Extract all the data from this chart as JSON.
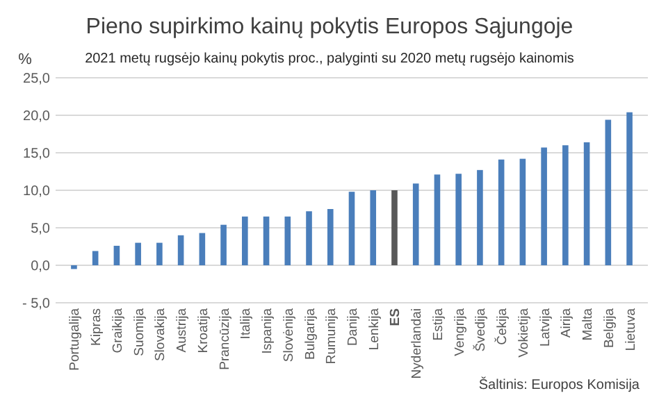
{
  "chart_data": {
    "type": "bar",
    "title": "Pieno supirkimo kainų pokytis Europos Sąjungoje",
    "subtitle": "2021 metų rugsėjo kainų pokytis proc., palyginti su 2020 metų rugsėjo kainomis",
    "ylabel": "%",
    "categories": [
      "Portugalija",
      "Kipras",
      "Graikija",
      "Suomija",
      "Slovakija",
      "Austrija",
      "Kroatija",
      "Prancūzija",
      "Italija",
      "Ispanija",
      "Slovėnija",
      "Bulgarija",
      "Rumunija",
      "Danija",
      "Lenkija",
      "ES",
      "Nyderlandai",
      "Estija",
      "Vengrija",
      "Švedija",
      "Čekija",
      "Vokietija",
      "Latvija",
      "Airija",
      "Malta",
      "Belgija",
      "Lietuva"
    ],
    "values": [
      -0.5,
      1.9,
      2.6,
      3.0,
      3.0,
      4.0,
      4.3,
      5.4,
      6.5,
      6.5,
      6.5,
      7.2,
      7.5,
      9.8,
      10.0,
      10.0,
      10.9,
      12.1,
      12.2,
      12.7,
      14.1,
      14.2,
      15.7,
      16.0,
      16.4,
      19.4,
      20.4
    ],
    "colors": [
      "#4a7ebb",
      "#4a7ebb",
      "#4a7ebb",
      "#4a7ebb",
      "#4a7ebb",
      "#4a7ebb",
      "#4a7ebb",
      "#4a7ebb",
      "#4a7ebb",
      "#4a7ebb",
      "#4a7ebb",
      "#4a7ebb",
      "#4a7ebb",
      "#4a7ebb",
      "#4a7ebb",
      "#595959",
      "#4a7ebb",
      "#4a7ebb",
      "#4a7ebb",
      "#4a7ebb",
      "#4a7ebb",
      "#4a7ebb",
      "#4a7ebb",
      "#4a7ebb",
      "#4a7ebb",
      "#4a7ebb",
      "#4a7ebb"
    ],
    "ylim": [
      -5,
      25
    ],
    "yticks": [
      {
        "value": -5,
        "label": "- 5,0"
      },
      {
        "value": 0,
        "label": "0,0"
      },
      {
        "value": 5,
        "label": "5,0"
      },
      {
        "value": 10,
        "label": "10,0"
      },
      {
        "value": 15,
        "label": "15,0"
      },
      {
        "value": 20,
        "label": "20,0"
      },
      {
        "value": 25,
        "label": "25,0"
      }
    ],
    "grid": "y",
    "annotations": [
      "Šaltinis: Europos Komisija"
    ]
  }
}
